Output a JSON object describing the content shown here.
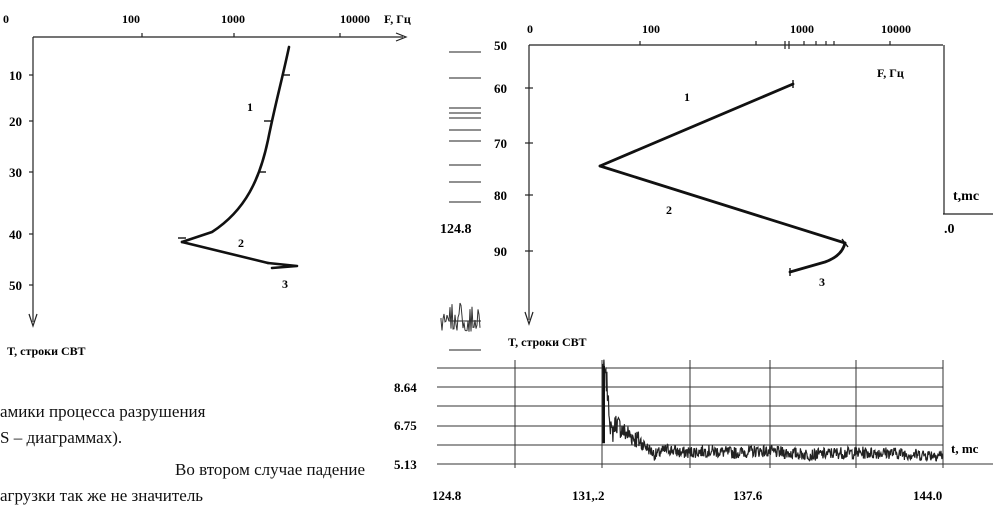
{
  "left_chart": {
    "x_tick_labels": [
      "0",
      "100",
      "1000",
      "10000"
    ],
    "x_axis_label": "F, Гц",
    "y_tick_labels": [
      "10",
      "20",
      "30",
      "40",
      "50"
    ],
    "y_axis_label": "T, строки СВТ",
    "curve_labels": [
      "1",
      "2",
      "3"
    ]
  },
  "right_chart": {
    "x_tick_labels": [
      "0",
      "100",
      "1000",
      "10000"
    ],
    "x_axis_label": "F, Гц",
    "y_tick_labels": [
      "50",
      "60",
      "70",
      "80",
      "90"
    ],
    "y_axis_label": "T, строки СВТ",
    "curve_labels": [
      "1",
      "2",
      "3"
    ]
  },
  "bottom_chart": {
    "y_tick_labels": [
      "8.64",
      "6.75",
      "5.13"
    ],
    "x_tick_labels": [
      "124.8",
      "131,.2",
      "137.6",
      "144.0"
    ],
    "x_axis_label": "t, mc"
  },
  "background_fragments": {
    "left_value": "124.8",
    "axis_label": "t,mc",
    "right_value": ".0"
  },
  "text": {
    "line1": "амики процесса разрушения",
    "line2": "S – диаграммах).",
    "line3": "Во втором случае падение",
    "line4": "агрузки так же не значитель"
  },
  "chart_data": [
    {
      "type": "line",
      "x_scale": "log",
      "x_ticks": [
        0,
        100,
        1000,
        10000
      ],
      "xlabel": "F, Гц",
      "ylabel": "T, строки СВТ",
      "ylim": [
        0,
        60
      ],
      "y_inverted": true,
      "series": [
        {
          "name": "1",
          "x": [
            1550,
            1200,
            900,
            600,
            350,
            200
          ],
          "y": [
            2,
            10,
            20,
            30,
            37,
            42
          ]
        },
        {
          "name": "2",
          "x": [
            200,
            1500
          ],
          "y": [
            42,
            46
          ]
        },
        {
          "name": "3",
          "x": [
            1500,
            1700,
            900
          ],
          "y": [
            46,
            47,
            47.5
          ]
        }
      ]
    },
    {
      "type": "line",
      "x_scale": "log",
      "x_ticks": [
        0,
        100,
        1000,
        10000
      ],
      "xlabel": "F, Гц",
      "ylabel": "T, строки СВТ",
      "ylim": [
        50,
        100
      ],
      "y_inverted": true,
      "series": [
        {
          "name": "1",
          "x": [
            900,
            40
          ],
          "y": [
            59,
            75
          ]
        },
        {
          "name": "2",
          "x": [
            40,
            2600
          ],
          "y": [
            75,
            89
          ]
        },
        {
          "name": "3",
          "x": [
            2600,
            2300,
            900
          ],
          "y": [
            89,
            91.5,
            94
          ]
        }
      ]
    },
    {
      "type": "line",
      "xlabel": "t, mc",
      "x_ticks": [
        124.8,
        131.2,
        137.6,
        144.0
      ],
      "y_ticks": [
        8.64,
        6.75,
        5.13
      ],
      "ylim": [
        4.3,
        10.0
      ],
      "grid": true,
      "series": [
        {
          "x": [
            131.0,
            131.15,
            131.25,
            131.35,
            131.5,
            131.8,
            132.2,
            132.6,
            133.0,
            133.5,
            134.0,
            135.0,
            136.0,
            137.0,
            138.0,
            139.0,
            140.0,
            141.0,
            142.0,
            143.0,
            144.0
          ],
          "y": [
            10.0,
            9.2,
            7.6,
            6.4,
            7.1,
            6.6,
            6.3,
            5.9,
            5.4,
            5.7,
            5.5,
            5.6,
            5.5,
            5.6,
            5.5,
            5.4,
            5.5,
            5.5,
            5.5,
            5.4,
            5.4
          ]
        }
      ]
    }
  ]
}
